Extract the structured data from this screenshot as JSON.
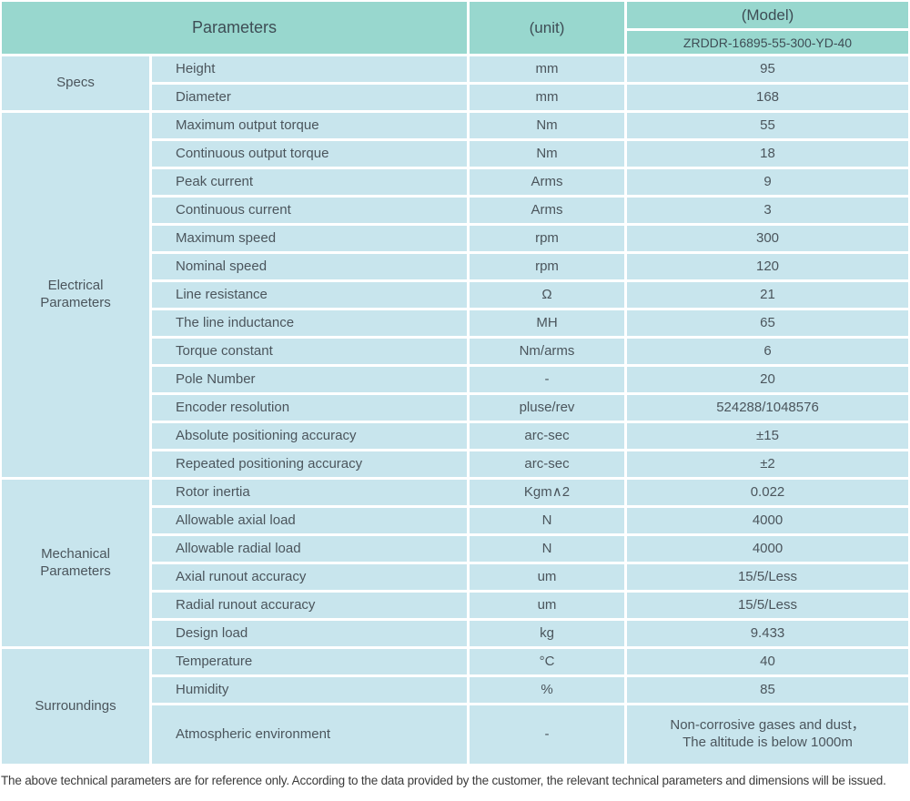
{
  "header": {
    "parameters_label": "Parameters",
    "unit_label": "(unit)",
    "model_label": "(Model)",
    "model_value": "ZRDDR-16895-55-300-YD-40"
  },
  "sections": [
    {
      "label": "Specs",
      "rows": [
        {
          "param": "Height",
          "unit": "mm",
          "value": "95"
        },
        {
          "param": "Diameter",
          "unit": "mm",
          "value": "168"
        }
      ]
    },
    {
      "label": "Electrical\nParameters",
      "rows": [
        {
          "param": "Maximum output torque",
          "unit": "Nm",
          "value": "55"
        },
        {
          "param": "Continuous output torque",
          "unit": "Nm",
          "value": "18"
        },
        {
          "param": "Peak current",
          "unit": "Arms",
          "value": "9"
        },
        {
          "param": "Continuous current",
          "unit": "Arms",
          "value": "3"
        },
        {
          "param": "Maximum speed",
          "unit": "rpm",
          "value": "300"
        },
        {
          "param": "Nominal speed",
          "unit": "rpm",
          "value": "120"
        },
        {
          "param": "Line resistance",
          "unit": "Ω",
          "value": "21"
        },
        {
          "param": "The line inductance",
          "unit": "MH",
          "value": "65"
        },
        {
          "param": "Torque constant",
          "unit": "Nm/arms",
          "value": "6"
        },
        {
          "param": "Pole Number",
          "unit": "-",
          "value": "20"
        },
        {
          "param": "Encoder resolution",
          "unit": "pluse/rev",
          "value": "524288/1048576"
        },
        {
          "param": "Absolute positioning accuracy",
          "unit": "arc-sec",
          "value": "±15"
        },
        {
          "param": "Repeated positioning accuracy",
          "unit": "arc-sec",
          "value": "±2"
        }
      ]
    },
    {
      "label": "Mechanical\nParameters",
      "rows": [
        {
          "param": "Rotor inertia",
          "unit": "Kgm∧2",
          "value": "0.022"
        },
        {
          "param": "Allowable axial load",
          "unit": "N",
          "value": "4000"
        },
        {
          "param": "Allowable radial load",
          "unit": "N",
          "value": "4000"
        },
        {
          "param": "Axial runout accuracy",
          "unit": "um",
          "value": "15/5/Less"
        },
        {
          "param": "Radial runout accuracy",
          "unit": "um",
          "value": "15/5/Less"
        },
        {
          "param": "Design load",
          "unit": "kg",
          "value": "9.433"
        }
      ]
    },
    {
      "label": "Surroundings",
      "rows": [
        {
          "param": "Temperature",
          "unit": "°C",
          "value": "40"
        },
        {
          "param": "Humidity",
          "unit": "%",
          "value": "85"
        },
        {
          "param": "Atmospheric environment",
          "unit": "-",
          "value": "Non-corrosive gases and dust，\nThe altitude is below 1000m"
        }
      ]
    }
  ],
  "footer": {
    "note": "The above technical parameters are for reference only. According to the data provided by the customer, the relevant technical parameters and dimensions will be issued."
  },
  "colors": {
    "header_bg": "#98d7ce",
    "row_bg": "#c8e5ed",
    "divider": "#ffffff",
    "text": "#4b555c"
  }
}
